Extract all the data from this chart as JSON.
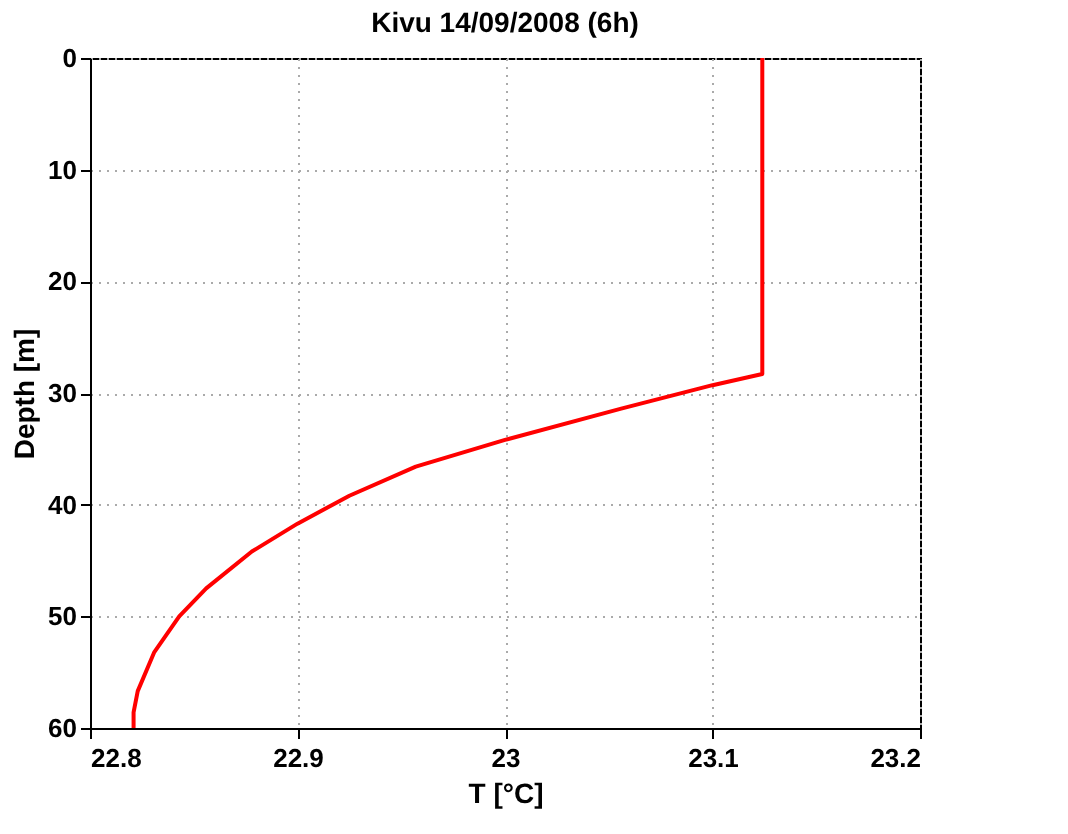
{
  "chart_data": {
    "type": "line",
    "title": "Kivu 14/09/2008 (6h)",
    "xlabel": "T [°C]",
    "ylabel": "Depth [m]",
    "x": [
      23.124,
      23.124,
      23.1,
      23.056,
      23.0,
      22.957,
      22.925,
      22.9,
      22.878,
      22.856,
      22.843,
      22.831,
      22.823,
      22.821,
      22.821
    ],
    "series": [
      {
        "color": "#ff0000",
        "values": [
          0,
          28.3,
          29.3,
          31.4,
          34.2,
          36.6,
          39.2,
          41.7,
          44.2,
          47.5,
          50,
          53.2,
          56.7,
          58.6,
          60
        ]
      }
    ],
    "xlim": [
      22.8,
      23.2
    ],
    "xticks": [
      22.8,
      22.9,
      23,
      23.1,
      23.2
    ],
    "ylim": [
      60,
      0
    ],
    "yticks": [
      0,
      10,
      20,
      30,
      40,
      50,
      60
    ],
    "grid": true,
    "line_style": "solid",
    "marker": "none"
  }
}
